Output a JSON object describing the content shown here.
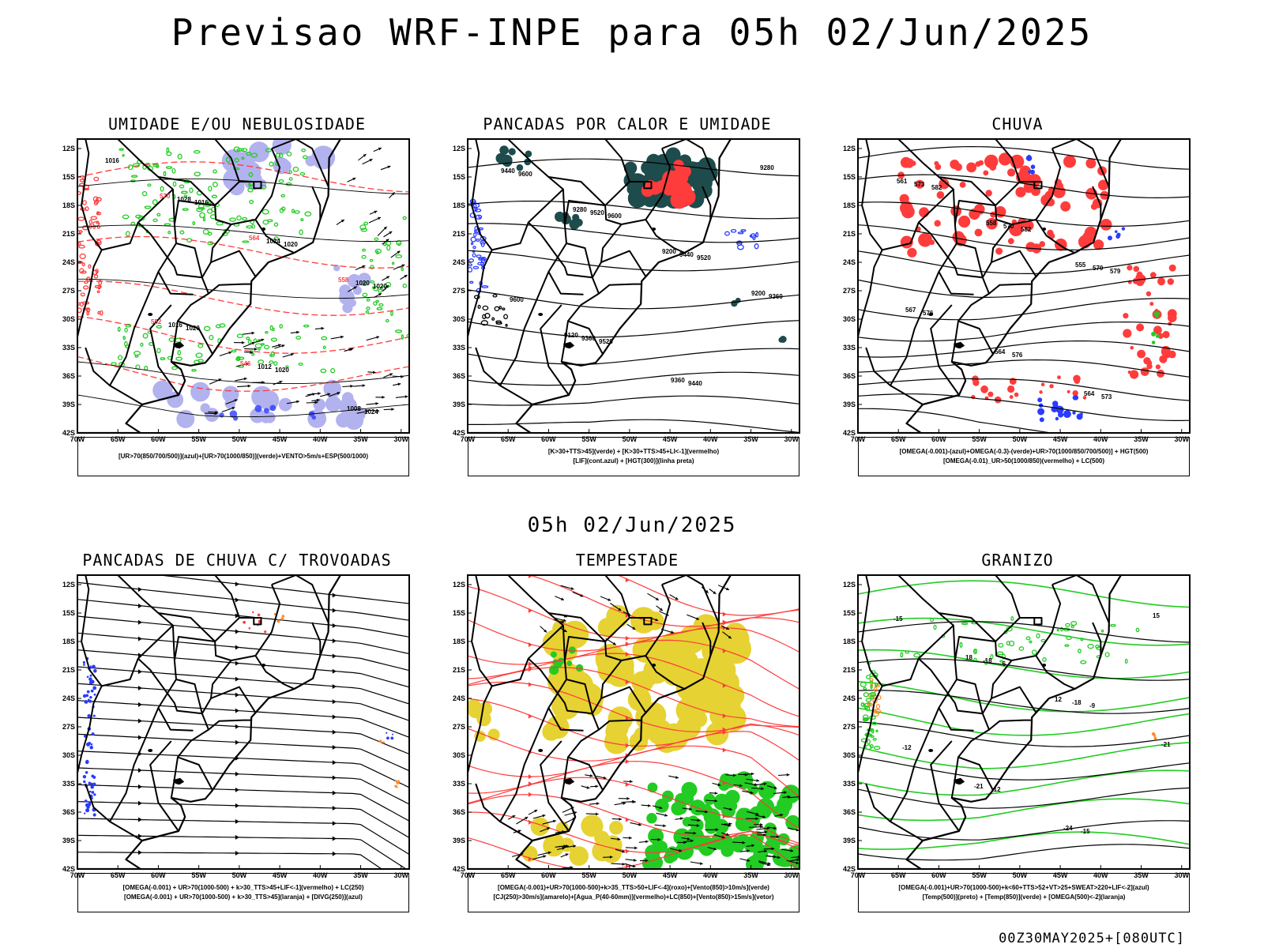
{
  "header": {
    "title": "Previsao WRF-INPE  para 05h 02/Jun/2025"
  },
  "middle": {
    "timestamp": "05h 02/Jun/2025"
  },
  "footer": {
    "run": "00Z30MAY2025+[080UTC]"
  },
  "axes": {
    "lat_ticks": [
      "12S",
      "15S",
      "18S",
      "21S",
      "24S",
      "27S",
      "30S",
      "33S",
      "36S",
      "39S",
      "42S"
    ],
    "lon_ticks": [
      "70W",
      "65W",
      "60W",
      "55W",
      "50W",
      "45W",
      "40W",
      "35W",
      "30W"
    ]
  },
  "colors": {
    "red": "#ff3c3c",
    "green": "#22cc22",
    "blue": "#2a3cff",
    "lavender": "#aaaaee",
    "darkteal": "#1e4b4b",
    "yellow": "#e6d232",
    "orange": "#ff8c32"
  },
  "panels": [
    {
      "title": "UMIDADE E/OU NEBULOSIDADE",
      "legend": [
        "[UR>70(850/700/500)](azul)+[UR>70(1000/850)](verde)+VENTO>5m/s+ESP(500/1000)"
      ],
      "contour_labels": [
        "1016",
        "1016",
        "1020",
        "1020",
        "1020",
        "1020",
        "1024",
        "1028",
        "1024",
        "1020",
        "1016",
        "1012",
        "1008",
        "570",
        "564",
        "558",
        "552",
        "546"
      ]
    },
    {
      "title": "PANCADAS POR CALOR E UMIDADE",
      "legend": [
        "[K>30+TTS>45](verde) + [K>30+TTS>45+LI<-1](vermelho)",
        "[LIF](cont.azul) + [HGT(300)](linha preta)"
      ],
      "contour_labels": [
        "9600",
        "9600",
        "9520",
        "9600",
        "9520",
        "9440",
        "9440",
        "9520",
        "9440",
        "9360",
        "9360",
        "9360",
        "9280",
        "9280",
        "9200",
        "9200",
        "9120"
      ]
    },
    {
      "title": "CHUVA",
      "legend": [
        "[OMEGA(-0.001)-(azul)+OMEGA(-0.3)-(verde)+UR>70(1000/850/700/500)] + HGT(500)",
        "[OMEGA(-0.01)_UR>50(1000/850)(vermelho) + LC(500)"
      ],
      "contour_labels": [
        "582",
        "582",
        "579",
        "576",
        "576",
        "573",
        "573",
        "570",
        "570",
        "567",
        "564",
        "564",
        "561",
        "558",
        "555"
      ]
    },
    {
      "title": "PANCADAS DE CHUVA C/ TROVOADAS",
      "legend": [
        "[OMEGA(-0.001) + UR>70(1000-500) + k>30_TTS>45+LIF<-1](vermelho) + LC(250)",
        "[OMEGA(-0.001) + UR>70(1000-500) + k>30_TTS>45](laranja) + [DIVG(250)](azul)"
      ],
      "contour_labels": []
    },
    {
      "title": "TEMPESTADE",
      "legend": [
        "[OMEGA(-0.001)+UR>70(1000-500)+k>35_TTS>50+LIF<-4](roxo)+[Vento(850)>10m/s](verde)",
        "[CJ(250)>30m/s](amarelo)+[Agua_P(40-60mm)](vermelho)+LC(850)+[Vento(850)>15m/s](vetor)"
      ],
      "contour_labels": []
    },
    {
      "title": "GRANIZO",
      "legend": [
        "[OMEGA(-0.001)+UR>70(1000-500)+k<60+TTS>52+VT>25+SWEAT>220+LIF<-2](azul)",
        "[Temp(500)](preto) + [Temp(850)](verde) + [OMEGA(500)<-2](laranja)"
      ],
      "contour_labels": [
        "-6",
        "-9",
        "-12",
        "-12",
        "-15",
        "-15",
        "-18",
        "-18",
        "-21",
        "-21",
        "-24",
        "15",
        "18",
        "12"
      ]
    }
  ]
}
